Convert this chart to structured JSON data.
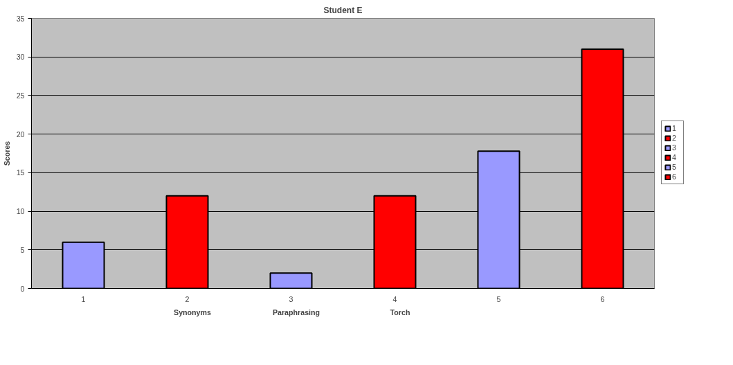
{
  "chart_data": {
    "type": "bar",
    "title": "Student E",
    "ylabel": "Scores",
    "categories": [
      "1",
      "2",
      "3",
      "4",
      "5",
      "6"
    ],
    "series": [
      {
        "name": "1",
        "color": "#9999ff",
        "values": [
          6,
          null,
          null,
          null,
          null,
          null
        ]
      },
      {
        "name": "2",
        "color": "#ff0000",
        "values": [
          null,
          12,
          null,
          null,
          null,
          null
        ]
      },
      {
        "name": "3",
        "color": "#9999ff",
        "values": [
          null,
          null,
          2,
          null,
          null,
          null
        ]
      },
      {
        "name": "4",
        "color": "#ff0000",
        "values": [
          null,
          null,
          null,
          12,
          null,
          null
        ]
      },
      {
        "name": "5",
        "color": "#9999ff",
        "values": [
          null,
          null,
          null,
          null,
          17.8,
          null
        ]
      },
      {
        "name": "6",
        "color": "#ff0000",
        "values": [
          null,
          null,
          null,
          null,
          null,
          31
        ]
      }
    ],
    "annotations": [
      "Synonyms",
      "Paraphrasing",
      "Torch"
    ],
    "ylim": [
      0,
      35
    ],
    "yticks": [
      0,
      5,
      10,
      15,
      20,
      25,
      30,
      35
    ],
    "grid": "y",
    "legend": "right"
  }
}
